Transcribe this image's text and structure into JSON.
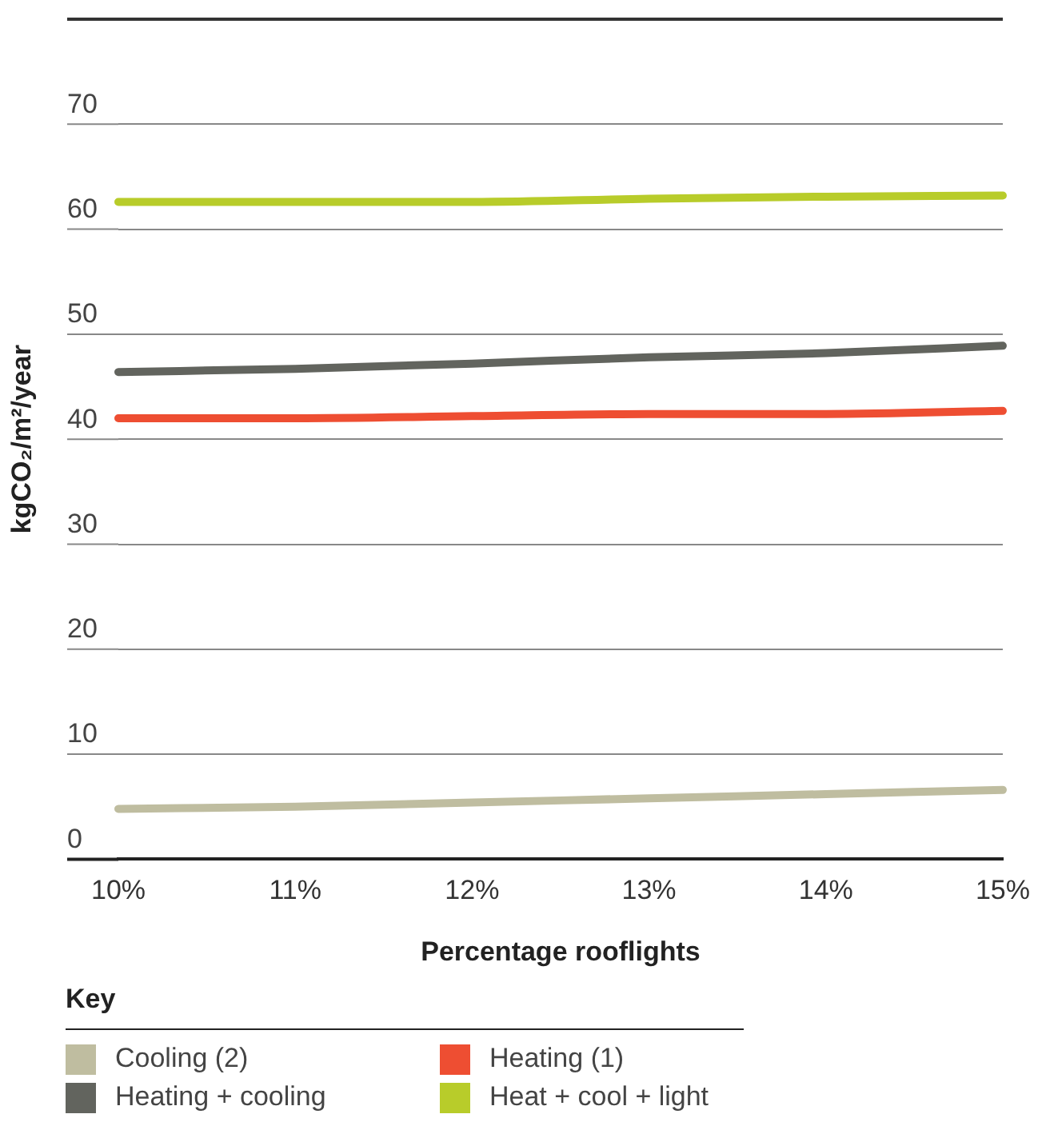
{
  "chart_data": {
    "type": "line",
    "xlabel": "Percentage rooflights",
    "ylabel": "kgCO₂/m²/year",
    "legend_title": "Key",
    "categories": [
      "10%",
      "11%",
      "12%",
      "13%",
      "14%",
      "15%"
    ],
    "ylim": [
      0,
      80
    ],
    "yticks": [
      0,
      10,
      20,
      30,
      40,
      50,
      60,
      70,
      {
        "value": 80,
        "label": null
      }
    ],
    "grid": "y",
    "legend": "bottom",
    "marker": "none",
    "line_style": "solid",
    "series": [
      {
        "name": "Cooling (2)",
        "color": "#bfbda0",
        "values": [
          4.8,
          5.0,
          5.4,
          5.8,
          6.2,
          6.6
        ]
      },
      {
        "name": "Heating (1)",
        "color": "#ee4e32",
        "values": [
          42.0,
          42.0,
          42.2,
          42.4,
          42.4,
          42.7
        ]
      },
      {
        "name": "Heating + cooling",
        "color": "#62645e",
        "values": [
          46.4,
          46.7,
          47.2,
          47.8,
          48.2,
          48.9
        ]
      },
      {
        "name": "Heat + cool + light",
        "color": "#b8cc2a",
        "values": [
          62.6,
          62.6,
          62.6,
          62.9,
          63.1,
          63.2
        ]
      }
    ]
  }
}
